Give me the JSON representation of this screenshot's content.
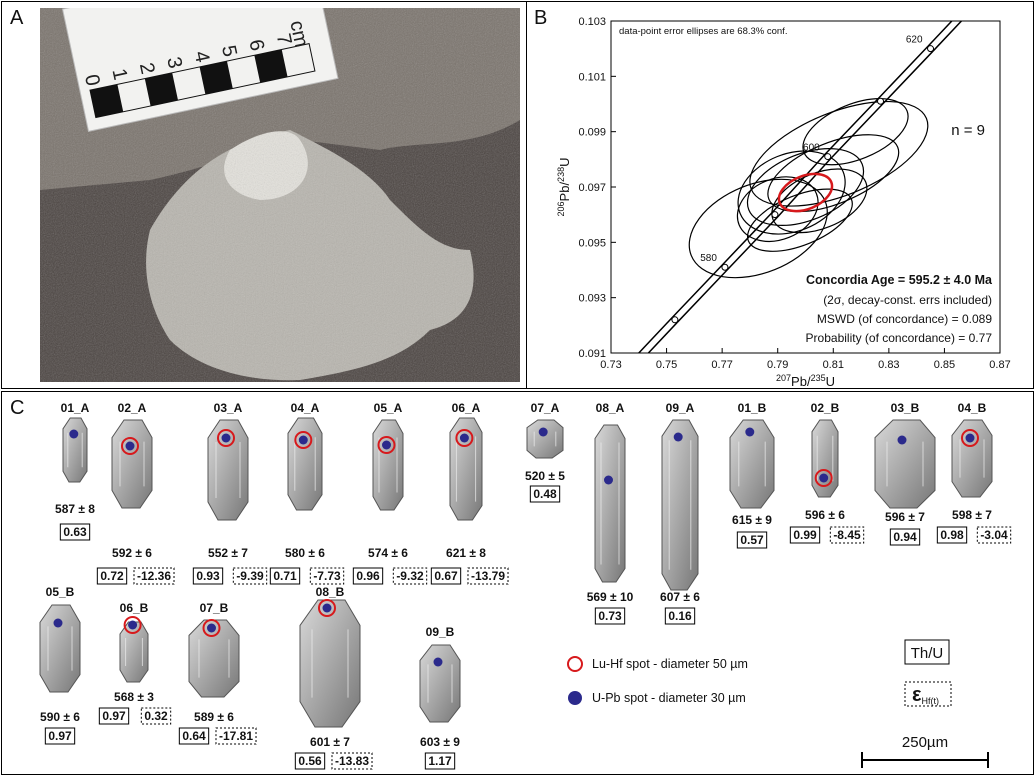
{
  "panels": {
    "a": "A",
    "b": "B",
    "c": "C"
  },
  "panel_a": {
    "ruler": [
      "0",
      "1",
      "2",
      "3",
      "4",
      "5",
      "6",
      "7",
      "cm"
    ]
  },
  "chart_data": {
    "type": "concordia",
    "note": "data-point error ellipses are 68.3% conf.",
    "n_label": "n = 9",
    "result_title": "Concordia Age = 595.2 ± 4.0 Ma",
    "results": [
      "(2σ, decay-const. errs included)",
      "MSWD (of concordance) = 0.089",
      "Probability (of concordance) = 0.77"
    ],
    "x_label": [
      "207",
      "Pb/",
      "235",
      "U"
    ],
    "y_label": [
      "206",
      "Pb/",
      "238",
      "U"
    ],
    "xlim": [
      0.73,
      0.87
    ],
    "xticks": [
      0.73,
      0.75,
      0.77,
      0.79,
      0.81,
      0.83,
      0.85,
      0.87
    ],
    "ylim": [
      0.091,
      0.103
    ],
    "yticks": [
      0.091,
      0.093,
      0.095,
      0.097,
      0.099,
      0.101,
      0.103
    ],
    "ellipse_color": "#000000",
    "ellipses": [
      {
        "x": 0.812,
        "y": 0.0982,
        "x_err": 0.034,
        "y_err": 0.0015
      },
      {
        "x": 0.783,
        "y": 0.0955,
        "x_err": 0.026,
        "y_err": 0.0016
      },
      {
        "x": 0.8,
        "y": 0.097,
        "x_err": 0.022,
        "y_err": 0.0012
      },
      {
        "x": 0.805,
        "y": 0.0965,
        "x_err": 0.018,
        "y_err": 0.001
      },
      {
        "x": 0.795,
        "y": 0.0968,
        "x_err": 0.02,
        "y_err": 0.0014
      },
      {
        "x": 0.81,
        "y": 0.0975,
        "x_err": 0.025,
        "y_err": 0.0011
      },
      {
        "x": 0.79,
        "y": 0.0962,
        "x_err": 0.015,
        "y_err": 0.0011
      },
      {
        "x": 0.818,
        "y": 0.099,
        "x_err": 0.02,
        "y_err": 0.001
      },
      {
        "x": 0.798,
        "y": 0.0958,
        "x_err": 0.02,
        "y_err": 0.0009
      }
    ],
    "mean_ellipse": {
      "x": 0.8,
      "y": 0.0968,
      "x_err": 0.01,
      "y_err": 0.0006,
      "color": "#d7191c"
    },
    "concordia_markers": [
      {
        "x": 0.753,
        "y": 0.0922,
        "label": null
      },
      {
        "x": 0.771,
        "y": 0.0941,
        "label": 580
      },
      {
        "x": 0.789,
        "y": 0.096,
        "label": null
      },
      {
        "x": 0.808,
        "y": 0.0981,
        "label": 600
      },
      {
        "x": 0.827,
        "y": 0.1001,
        "label": null
      },
      {
        "x": 0.845,
        "y": 0.102,
        "label": 620
      }
    ]
  },
  "panel_c": {
    "grains": [
      {
        "label": "01_A",
        "age": "587 ± 8",
        "th_u": "0.63"
      },
      {
        "label": "02_A",
        "age": "592 ± 6",
        "th_u": "0.72",
        "ehf": "-12.36"
      },
      {
        "label": "03_A",
        "age": "552 ± 7",
        "th_u": "0.93",
        "ehf": "-9.39"
      },
      {
        "label": "04_A",
        "age": "580 ± 6",
        "th_u": "0.71",
        "ehf": "-7.73"
      },
      {
        "label": "05_A",
        "age": "574 ± 6",
        "th_u": "0.96",
        "ehf": "-9.32"
      },
      {
        "label": "06_A",
        "age": "621 ± 8",
        "th_u": "0.67",
        "ehf": "-13.79"
      },
      {
        "label": "07_A",
        "age": "520 ± 5",
        "th_u": "0.48"
      },
      {
        "label": "08_A",
        "age": "569 ± 10",
        "th_u": "0.73"
      },
      {
        "label": "09_A",
        "age": "607 ± 6",
        "th_u": "0.16"
      },
      {
        "label": "01_B",
        "age": "615 ± 9",
        "th_u": "0.57"
      },
      {
        "label": "02_B",
        "age": "596 ± 6",
        "th_u": "0.99",
        "ehf": "-8.45"
      },
      {
        "label": "03_B",
        "age": "596 ± 7",
        "th_u": "0.94"
      },
      {
        "label": "04_B",
        "age": "598 ± 7",
        "th_u": "0.98",
        "ehf": "-3.04"
      },
      {
        "label": "05_B",
        "age": "590 ± 6",
        "th_u": "0.97"
      },
      {
        "label": "06_B",
        "age": "568 ± 3",
        "th_u": "0.97",
        "ehf": "0.32"
      },
      {
        "label": "07_B",
        "age": "589 ± 6",
        "th_u": "0.64",
        "ehf": "-17.81"
      },
      {
        "label": "08_B",
        "age": "601 ± 7",
        "th_u": "0.56",
        "ehf": "-13.83"
      },
      {
        "label": "09_B",
        "age": "603 ± 9",
        "th_u": "1.17"
      }
    ],
    "legend": {
      "lu_hf": "Lu-Hf spot - diameter 50 µm",
      "u_pb": "U-Pb spot - diameter 30 µm",
      "th_u": "Th/U",
      "ehf_symbol": "ε",
      "ehf_sub": "Hf(t)",
      "scale": "250µm"
    }
  }
}
